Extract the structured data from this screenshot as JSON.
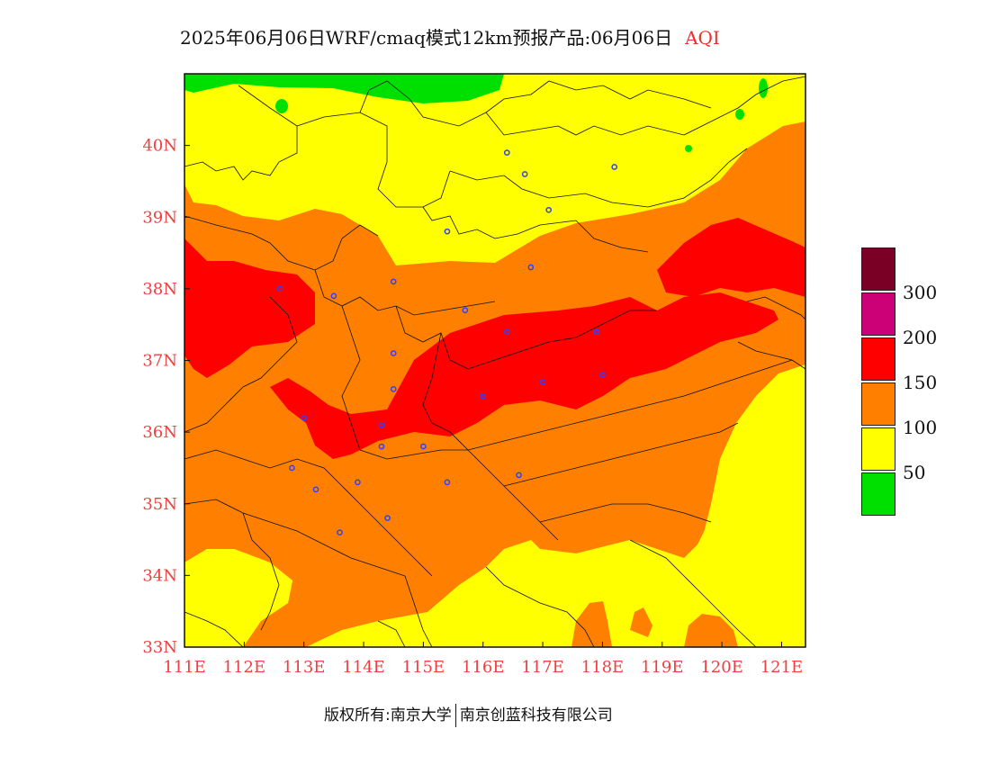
{
  "header": {
    "title": "2025年06月06日WRF/cmaq模式12km预报产品:06月06日",
    "variable": "AQI"
  },
  "footer": {
    "copyright": "版权所有:南京大学",
    "company": "南京创蓝科技有限公司"
  },
  "axes": {
    "x_ticks": [
      "111E",
      "112E",
      "113E",
      "114E",
      "115E",
      "116E",
      "117E",
      "118E",
      "119E",
      "120E",
      "121E"
    ],
    "y_ticks": [
      "33N",
      "34N",
      "35N",
      "36N",
      "37N",
      "38N",
      "39N",
      "40N"
    ]
  },
  "legend": {
    "levels": [
      {
        "color": "#7a0026",
        "label": "300"
      },
      {
        "color": "#cc0077",
        "label": "200"
      },
      {
        "color": "#ff0000",
        "label": "150"
      },
      {
        "color": "#ff8000",
        "label": "100"
      },
      {
        "color": "#ffff00",
        "label": "50"
      },
      {
        "color": "#00e000",
        "label": ""
      }
    ]
  },
  "map": {
    "extent_lon": [
      111,
      121.4
    ],
    "extent_lat": [
      33,
      41
    ],
    "colors": {
      "green": "#00e000",
      "yellow": "#ffff00",
      "orange": "#ff8000",
      "red": "#ff0000"
    },
    "city_markers": [
      [
        113.6,
        34.6
      ],
      [
        114.4,
        34.8
      ],
      [
        113.9,
        35.3
      ],
      [
        113.2,
        35.2
      ],
      [
        112.8,
        35.5
      ],
      [
        114.3,
        35.8
      ],
      [
        115.0,
        35.8
      ],
      [
        115.4,
        35.3
      ],
      [
        116.6,
        35.4
      ],
      [
        113.0,
        36.2
      ],
      [
        114.3,
        36.1
      ],
      [
        114.5,
        36.6
      ],
      [
        114.5,
        37.1
      ],
      [
        116.0,
        36.5
      ],
      [
        117.0,
        36.7
      ],
      [
        118.0,
        36.8
      ],
      [
        116.4,
        37.4
      ],
      [
        117.9,
        37.4
      ],
      [
        115.7,
        37.7
      ],
      [
        112.6,
        38.0
      ],
      [
        113.5,
        37.9
      ],
      [
        114.5,
        38.1
      ],
      [
        116.8,
        38.3
      ],
      [
        115.4,
        38.8
      ],
      [
        117.1,
        39.1
      ],
      [
        116.7,
        39.6
      ],
      [
        116.4,
        39.9
      ],
      [
        118.2,
        39.7
      ]
    ]
  }
}
